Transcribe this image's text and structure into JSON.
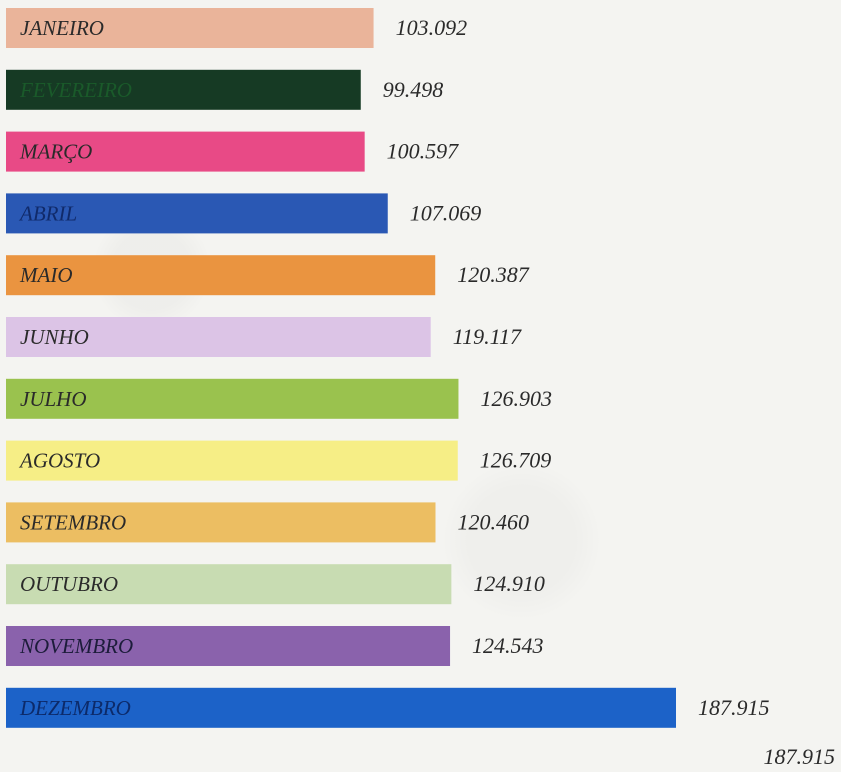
{
  "chart_data": {
    "type": "bar",
    "orientation": "horizontal",
    "categories": [
      "JANEIRO",
      "FEVEREIRO",
      "MARÇO",
      "ABRIL",
      "MAIO",
      "JUNHO",
      "JULHO",
      "AGOSTO",
      "SETEMBRO",
      "OUTUBRO",
      "NOVEMBRO",
      "DEZEMBRO"
    ],
    "values": [
      103092,
      99498,
      100597,
      107069,
      120387,
      119117,
      126903,
      126709,
      120460,
      124910,
      124543,
      187915
    ],
    "value_labels": [
      "103.092",
      "99.498",
      "100.597",
      "107.069",
      "120.387",
      "119.117",
      "126.903",
      "126.709",
      "120.460",
      "124.910",
      "124.543",
      "187.915"
    ],
    "colors": [
      "#eab49a",
      "#163a24",
      "#e84a86",
      "#2a58b4",
      "#ea9440",
      "#dcc4e6",
      "#9ac24e",
      "#f6ee86",
      "#ecbe62",
      "#c8dcb2",
      "#8a62ac",
      "#1c62c8"
    ],
    "label_colors": [
      "#2a2a2a",
      "#1a5a2a",
      "#2a2a2a",
      "#102a6a",
      "#2a2a2a",
      "#2a2a2a",
      "#2a2a2a",
      "#2a2a2a",
      "#2a2a2a",
      "#2a2a2a",
      "#1c1c3a",
      "#0c2a6a"
    ],
    "title": "",
    "xlabel": "",
    "ylabel": "",
    "grid": false,
    "legend": false
  },
  "footer_value": "187.915"
}
